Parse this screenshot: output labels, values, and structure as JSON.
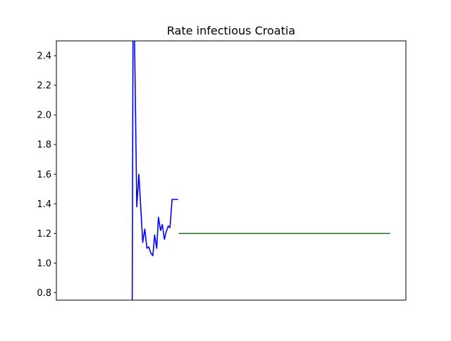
{
  "chart_data": {
    "type": "line",
    "title": "Rate infectious Croatia",
    "xlabel": "",
    "ylabel": "",
    "xlim": [
      0,
      100
    ],
    "ylim": [
      0.75,
      2.5
    ],
    "y_ticks": [
      0.8,
      1.0,
      1.2,
      1.4,
      1.6,
      1.8,
      2.0,
      2.2,
      2.4
    ],
    "y_tick_labels": [
      "0.8",
      "1.0",
      "1.2",
      "1.4",
      "1.6",
      "1.8",
      "2.0",
      "2.2",
      "2.4"
    ],
    "x_ticks_visible": false,
    "grid": false,
    "legend": "none",
    "series": [
      {
        "color": "#0000ff",
        "x": [
          21.7,
          22.0,
          22.4,
          23.0,
          23.6,
          24.2,
          24.7,
          25.3,
          25.9,
          26.4,
          27.0,
          27.6,
          28.1,
          28.7,
          29.2,
          29.8,
          30.3,
          30.9,
          31.4,
          32.0,
          32.5,
          33.1,
          33.6,
          34.2,
          34.8
        ],
        "y": [
          0.75,
          3.2,
          2.45,
          1.38,
          1.6,
          1.35,
          1.14,
          1.23,
          1.1,
          1.11,
          1.07,
          1.05,
          1.19,
          1.1,
          1.31,
          1.22,
          1.26,
          1.16,
          1.21,
          1.25,
          1.24,
          1.43,
          1.43,
          1.43,
          1.43
        ]
      },
      {
        "color": "#008000",
        "x": [
          35.0,
          95.5
        ],
        "y": [
          1.2,
          1.2
        ]
      }
    ]
  }
}
